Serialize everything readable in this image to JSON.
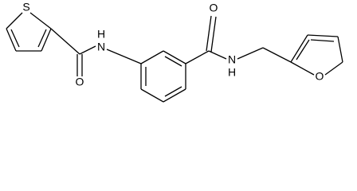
{
  "atoms": [
    {
      "label": "S"
    },
    {
      "label": "O"
    },
    {
      "label": "H"
    },
    {
      "label": "N"
    },
    {
      "label": "O"
    },
    {
      "label": "N"
    },
    {
      "label": "H"
    },
    {
      "label": "O"
    }
  ]
}
